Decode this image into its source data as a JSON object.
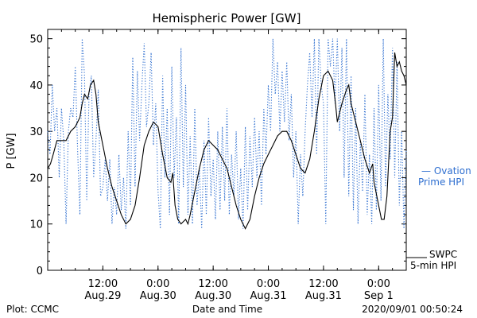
{
  "footer": {
    "left": "Plot: CCMC",
    "center": "Date and Time",
    "right": "2020/09/01 00:50:24"
  },
  "legend": {
    "ovation_line1": "— Ovation",
    "ovation_line2": "Prime HPI",
    "swpc_line1": "SWPC",
    "swpc_line2": "5-min HPI"
  },
  "colors": {
    "swpc": "#000000",
    "ovation": "#2f6fd0",
    "axis": "#000000",
    "background": "#ffffff"
  },
  "chart_data": {
    "type": "line",
    "title": "Hemispheric Power [GW]",
    "xlabel": "Date and Time",
    "ylabel": "P [GW]",
    "ylim": [
      0,
      52
    ],
    "xlim_hours": [
      0,
      78
    ],
    "yticks": [
      0,
      10,
      20,
      30,
      40,
      50
    ],
    "xticks": [
      {
        "hour": 12,
        "line1": "12:00",
        "line2": "Aug.29"
      },
      {
        "hour": 24,
        "line1": "0:00",
        "line2": "Aug.30"
      },
      {
        "hour": 36,
        "line1": "12:00",
        "line2": "Aug.30"
      },
      {
        "hour": 48,
        "line1": "0:00",
        "line2": "Aug.31"
      },
      {
        "hour": 60,
        "line1": "12:00",
        "line2": "Aug.31"
      },
      {
        "hour": 72,
        "line1": "0:00",
        "line2": "Sep 1"
      }
    ],
    "grid": false,
    "series": [
      {
        "name": "SWPC 5-min HPI",
        "style": "solid",
        "points": [
          [
            0,
            22
          ],
          [
            0.6,
            23
          ],
          [
            1.2,
            25
          ],
          [
            2,
            28
          ],
          [
            3,
            28
          ],
          [
            4,
            28
          ],
          [
            5,
            30
          ],
          [
            6,
            31
          ],
          [
            7,
            33
          ],
          [
            7.5,
            36
          ],
          [
            8,
            38
          ],
          [
            8.7,
            37
          ],
          [
            9.3,
            40
          ],
          [
            10,
            41
          ],
          [
            10.5,
            38
          ],
          [
            11,
            32
          ],
          [
            12,
            27
          ],
          [
            13,
            22
          ],
          [
            14,
            18
          ],
          [
            15,
            15
          ],
          [
            16,
            12
          ],
          [
            17,
            10
          ],
          [
            18,
            11
          ],
          [
            19,
            14
          ],
          [
            20,
            20
          ],
          [
            21,
            27
          ],
          [
            22,
            30
          ],
          [
            23,
            32
          ],
          [
            24,
            31
          ],
          [
            25,
            25
          ],
          [
            26,
            20
          ],
          [
            26.8,
            19
          ],
          [
            27.2,
            21
          ],
          [
            27.7,
            14
          ],
          [
            28.3,
            11
          ],
          [
            29,
            10
          ],
          [
            30,
            11
          ],
          [
            30.5,
            10
          ],
          [
            31,
            12
          ],
          [
            32,
            17
          ],
          [
            33,
            22
          ],
          [
            34,
            26
          ],
          [
            35,
            28
          ],
          [
            36,
            27
          ],
          [
            37,
            26
          ],
          [
            38,
            24
          ],
          [
            39,
            22
          ],
          [
            40,
            18
          ],
          [
            41,
            14
          ],
          [
            42,
            11
          ],
          [
            43,
            9
          ],
          [
            44,
            11
          ],
          [
            45,
            16
          ],
          [
            46,
            20
          ],
          [
            47,
            23
          ],
          [
            48,
            25
          ],
          [
            49,
            27
          ],
          [
            50,
            29
          ],
          [
            51,
            30
          ],
          [
            52,
            30
          ],
          [
            53,
            28
          ],
          [
            54,
            25
          ],
          [
            55,
            22
          ],
          [
            56,
            21
          ],
          [
            57,
            24
          ],
          [
            58,
            30
          ],
          [
            59,
            37
          ],
          [
            60,
            42
          ],
          [
            61,
            43
          ],
          [
            62,
            41
          ],
          [
            62.6,
            36
          ],
          [
            63,
            32
          ],
          [
            64,
            36
          ],
          [
            65,
            39
          ],
          [
            65.5,
            40
          ],
          [
            66,
            36
          ],
          [
            67,
            32
          ],
          [
            68,
            28
          ],
          [
            69,
            24
          ],
          [
            70,
            21
          ],
          [
            70.7,
            23
          ],
          [
            71,
            19
          ],
          [
            72,
            14
          ],
          [
            72.6,
            11
          ],
          [
            73.2,
            11
          ],
          [
            73.8,
            16
          ],
          [
            74.5,
            30
          ],
          [
            75,
            33
          ],
          [
            75.5,
            47
          ],
          [
            76,
            44
          ],
          [
            76.5,
            45
          ],
          [
            77,
            43
          ],
          [
            77.5,
            42
          ],
          [
            78,
            40
          ]
        ]
      },
      {
        "name": "Ovation Prime HPI",
        "style": "dotted",
        "points": [
          [
            0,
            30
          ],
          [
            0.5,
            25
          ],
          [
            1,
            40
          ],
          [
            1.5,
            30
          ],
          [
            2,
            35
          ],
          [
            2.5,
            20
          ],
          [
            3,
            35
          ],
          [
            3.5,
            28
          ],
          [
            4,
            10
          ],
          [
            4.5,
            30
          ],
          [
            5,
            35
          ],
          [
            5.5,
            33
          ],
          [
            6,
            44
          ],
          [
            6.5,
            26
          ],
          [
            7,
            12
          ],
          [
            7.5,
            50
          ],
          [
            8,
            42
          ],
          [
            8.5,
            15
          ],
          [
            9,
            38
          ],
          [
            9.5,
            42
          ],
          [
            10,
            20
          ],
          [
            10.5,
            28
          ],
          [
            11,
            39
          ],
          [
            11.5,
            16
          ],
          [
            12,
            18
          ],
          [
            12.5,
            24
          ],
          [
            13,
            15
          ],
          [
            13.5,
            24
          ],
          [
            14,
            10
          ],
          [
            14.5,
            18
          ],
          [
            15,
            12
          ],
          [
            15.5,
            25
          ],
          [
            16,
            13
          ],
          [
            16.5,
            20
          ],
          [
            17,
            9
          ],
          [
            17.5,
            30
          ],
          [
            18,
            14
          ],
          [
            18.5,
            46
          ],
          [
            19,
            18
          ],
          [
            19.5,
            43
          ],
          [
            20,
            28
          ],
          [
            20.5,
            40
          ],
          [
            21,
            49
          ],
          [
            21.5,
            31
          ],
          [
            22,
            36
          ],
          [
            22.5,
            47
          ],
          [
            23,
            27
          ],
          [
            23.5,
            36
          ],
          [
            24,
            17
          ],
          [
            24.5,
            9
          ],
          [
            25,
            42
          ],
          [
            25.5,
            20
          ],
          [
            26,
            35
          ],
          [
            26.5,
            12
          ],
          [
            27,
            44
          ],
          [
            27.5,
            20
          ],
          [
            28,
            33
          ],
          [
            28.5,
            10
          ],
          [
            29,
            48
          ],
          [
            29.5,
            18
          ],
          [
            30,
            40
          ],
          [
            30.5,
            12
          ],
          [
            31,
            29
          ],
          [
            31.5,
            10
          ],
          [
            32,
            35
          ],
          [
            32.5,
            14
          ],
          [
            33,
            22
          ],
          [
            33.5,
            9
          ],
          [
            34,
            28
          ],
          [
            34.5,
            12
          ],
          [
            35,
            33
          ],
          [
            35.5,
            16
          ],
          [
            36,
            24
          ],
          [
            36.5,
            11
          ],
          [
            37,
            30
          ],
          [
            37.5,
            13
          ],
          [
            38,
            31
          ],
          [
            38.5,
            15
          ],
          [
            39,
            35
          ],
          [
            39.5,
            12
          ],
          [
            40,
            25
          ],
          [
            40.5,
            16
          ],
          [
            41,
            30
          ],
          [
            41.5,
            11
          ],
          [
            42,
            22
          ],
          [
            42.5,
            9
          ],
          [
            43,
            31
          ],
          [
            43.5,
            13
          ],
          [
            44,
            29
          ],
          [
            44.5,
            18
          ],
          [
            45,
            33
          ],
          [
            45.5,
            20
          ],
          [
            46,
            30
          ],
          [
            46.5,
            14
          ],
          [
            47,
            35
          ],
          [
            47.5,
            25
          ],
          [
            48,
            40
          ],
          [
            48.5,
            30
          ],
          [
            49,
            50
          ],
          [
            49.5,
            38
          ],
          [
            50,
            45
          ],
          [
            50.5,
            30
          ],
          [
            51,
            43
          ],
          [
            51.5,
            32
          ],
          [
            52,
            45
          ],
          [
            52.5,
            28
          ],
          [
            53,
            38
          ],
          [
            53.5,
            20
          ],
          [
            54,
            30
          ],
          [
            54.5,
            10
          ],
          [
            55,
            25
          ],
          [
            55.5,
            16
          ],
          [
            56,
            30
          ],
          [
            56.5,
            40
          ],
          [
            57,
            47
          ],
          [
            57.5,
            33
          ],
          [
            58,
            50
          ],
          [
            58.5,
            25
          ],
          [
            59,
            50
          ],
          [
            59.5,
            40
          ],
          [
            60,
            36
          ],
          [
            60.5,
            10
          ],
          [
            61,
            50
          ],
          [
            61.5,
            44
          ],
          [
            62,
            50
          ],
          [
            62.5,
            36
          ],
          [
            63,
            50
          ],
          [
            63.5,
            30
          ],
          [
            64,
            48
          ],
          [
            64.5,
            20
          ],
          [
            65,
            50
          ],
          [
            65.5,
            16
          ],
          [
            66,
            42
          ],
          [
            66.5,
            13
          ],
          [
            67,
            35
          ],
          [
            67.5,
            10
          ],
          [
            68,
            28
          ],
          [
            68.5,
            17
          ],
          [
            69,
            38
          ],
          [
            69.5,
            12
          ],
          [
            70,
            25
          ],
          [
            70.5,
            10
          ],
          [
            71,
            35
          ],
          [
            71.5,
            13
          ],
          [
            72,
            40
          ],
          [
            72.5,
            15
          ],
          [
            73,
            50
          ],
          [
            73.5,
            18
          ],
          [
            74,
            38
          ],
          [
            74.5,
            24
          ],
          [
            75,
            48
          ],
          [
            75.5,
            20
          ],
          [
            76,
            45
          ],
          [
            76.5,
            14
          ],
          [
            77,
            30
          ],
          [
            77.5,
            9
          ],
          [
            78,
            26
          ]
        ]
      }
    ]
  }
}
